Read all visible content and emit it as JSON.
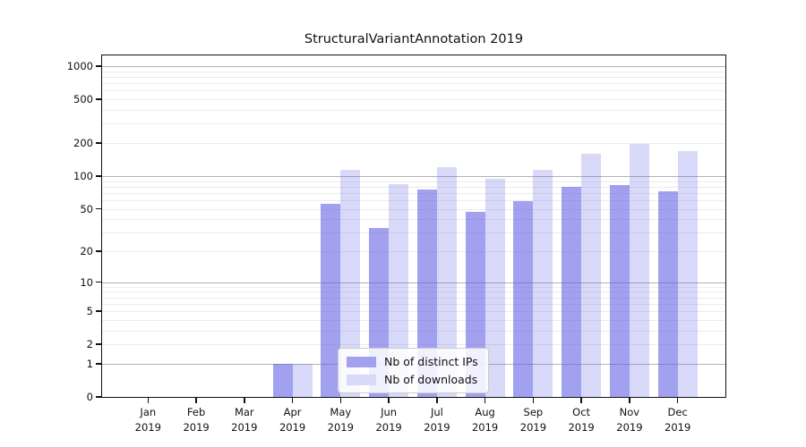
{
  "title": "StructuralVariantAnnotation 2019",
  "chart_data": {
    "type": "bar",
    "title": "StructuralVariantAnnotation 2019",
    "categories": [
      "Jan",
      "Feb",
      "Mar",
      "Apr",
      "May",
      "Jun",
      "Jul",
      "Aug",
      "Sep",
      "Oct",
      "Nov",
      "Dec"
    ],
    "x_tick_second_line": "2019",
    "series": [
      {
        "name": "Nb of distinct IPs",
        "values": [
          0,
          0,
          0,
          1,
          55,
          33,
          75,
          47,
          59,
          79,
          83,
          72
        ],
        "bar_color": "rgba(93,93,230,0.58)",
        "legend_color": "#a1a1f0"
      },
      {
        "name": "Nb of downloads",
        "values": [
          0,
          0,
          0,
          1,
          115,
          84,
          120,
          95,
          113,
          160,
          195,
          170
        ],
        "bar_color": "rgba(93,93,230,0.24)",
        "legend_color": "#d8d8f9"
      }
    ],
    "xlabel": "",
    "ylabel": "",
    "y_axis": {
      "scale": "log10(value+1)",
      "tick_values": [
        0,
        1,
        2,
        5,
        10,
        20,
        50,
        100,
        200,
        500,
        1000
      ],
      "tick_labels": [
        "0",
        "1",
        "2",
        "5",
        "10",
        "20",
        "50",
        "100",
        "200",
        "500",
        "1000"
      ],
      "ylim": [
        0,
        1200
      ]
    },
    "grid": {
      "on": true,
      "major_values": [
        1,
        10,
        100,
        1000
      ],
      "major_color": "#b3b3b3",
      "minor_color": "#ececec"
    },
    "legend_position": "lower center",
    "colors": {
      "axis": "#111111",
      "background": "#ffffff"
    }
  }
}
